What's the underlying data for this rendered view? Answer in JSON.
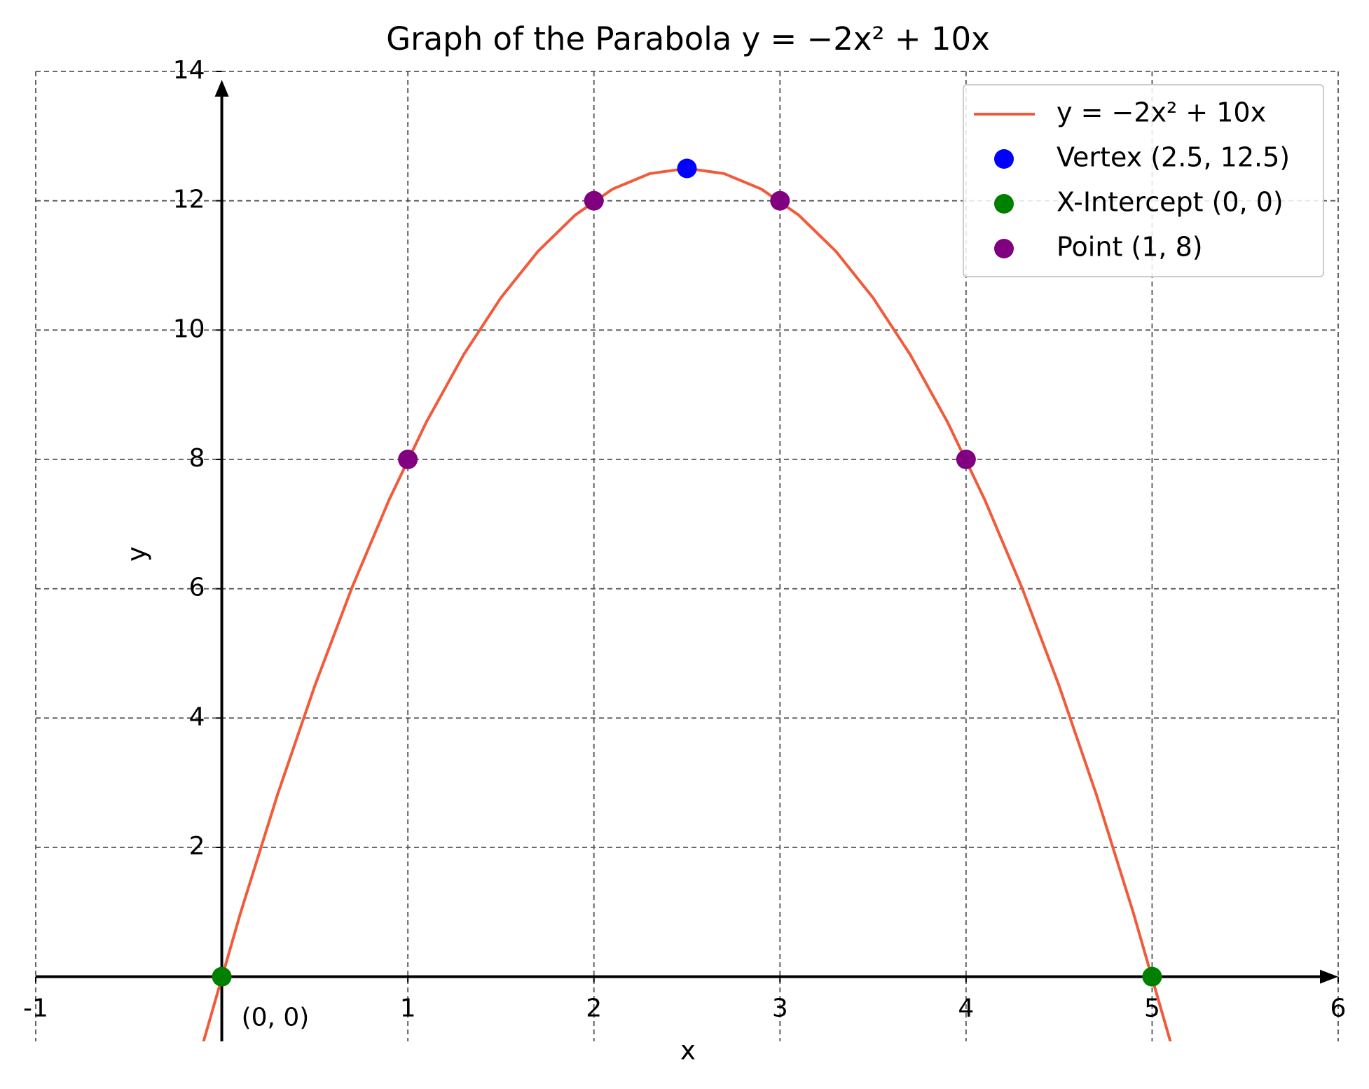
{
  "chart_data": {
    "type": "line",
    "title": "Graph of the Parabola y = −2x² + 10x",
    "xlabel": "x",
    "ylabel": "y",
    "xlim": [
      -1,
      6
    ],
    "ylim": [
      -1,
      14
    ],
    "xticks": [
      -1,
      1,
      2,
      3,
      4,
      5,
      6
    ],
    "yticks": [
      2,
      4,
      6,
      8,
      10,
      12,
      14
    ],
    "grid": true,
    "legend": "upper right",
    "annotations": [
      "(0, 0)"
    ],
    "series": [
      {
        "name": "y = −2x² + 10x",
        "type": "line",
        "color": "#f15a3a",
        "x": [
          -0.1,
          0.1,
          0.3,
          0.5,
          0.7,
          0.9,
          1.1,
          1.3,
          1.5,
          1.7,
          1.9,
          2.1,
          2.3,
          2.5,
          2.7,
          2.9,
          3.1,
          3.3,
          3.5,
          3.7,
          3.9,
          4.1,
          4.3,
          4.5,
          4.7,
          4.9,
          5.1
        ],
        "values": [
          -1.02,
          0.98,
          2.82,
          4.5,
          6.02,
          7.38,
          8.58,
          9.62,
          10.5,
          11.22,
          11.78,
          12.18,
          12.42,
          12.5,
          12.42,
          12.18,
          11.78,
          11.22,
          10.5,
          9.62,
          8.58,
          7.38,
          6.02,
          4.5,
          2.82,
          0.98,
          -1.02
        ]
      },
      {
        "name": "Vertex (2.5, 12.5)",
        "type": "scatter",
        "color": "#0000ff",
        "x": [
          2.5
        ],
        "values": [
          12.5
        ]
      },
      {
        "name": "X-Intercept (0, 0)",
        "type": "scatter",
        "color": "#008000",
        "x": [
          0,
          5
        ],
        "values": [
          0,
          0
        ]
      },
      {
        "name": "Point (1, 8)",
        "type": "scatter",
        "color": "#800080",
        "x": [
          1,
          2,
          3,
          4
        ],
        "values": [
          8,
          12,
          12,
          8
        ]
      }
    ]
  }
}
